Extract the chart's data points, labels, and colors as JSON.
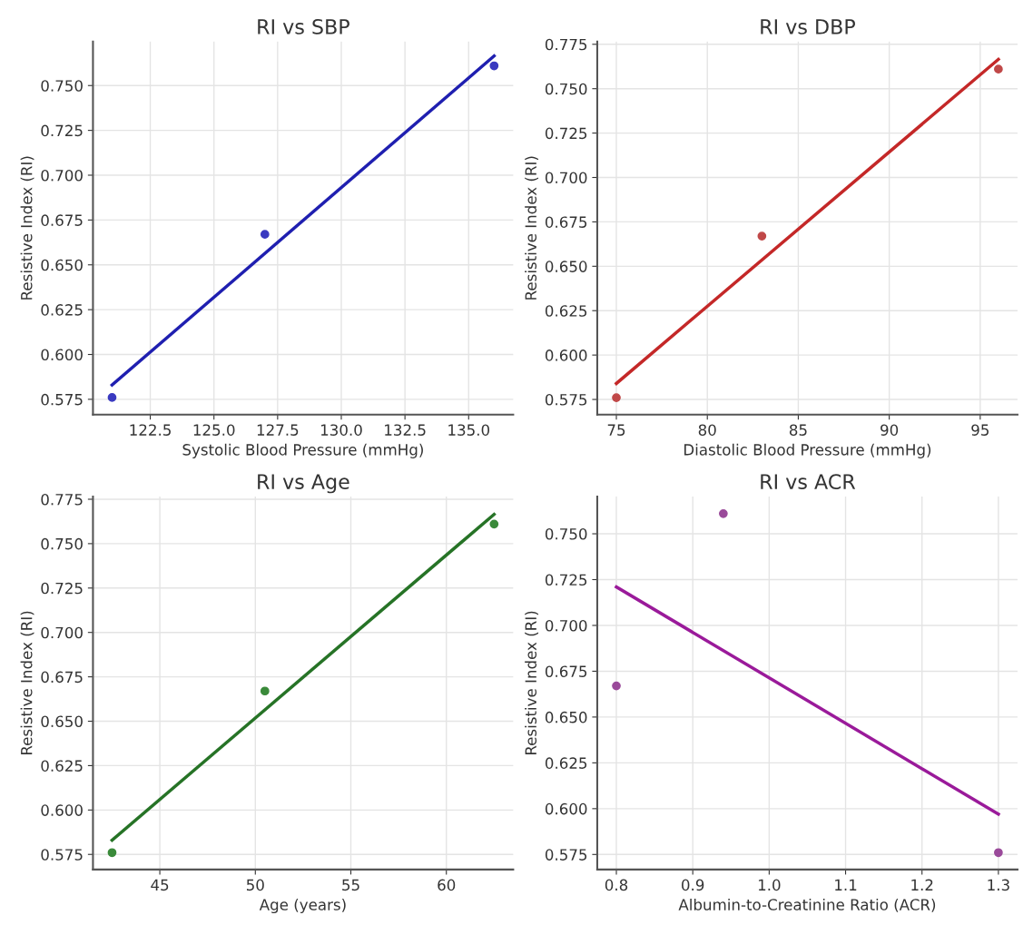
{
  "chart_data": [
    {
      "type": "scatter",
      "title": "RI vs SBP",
      "xlabel": "Systolic Blood Pressure (mmHg)",
      "ylabel": "Resistive Index (RI)",
      "grid": true,
      "xlim": [
        120.25,
        136.75
      ],
      "xticks": [
        122.5,
        {
          "value": 125,
          "label": "125.0"
        },
        127.5,
        {
          "value": 130,
          "label": "130.0"
        },
        132.5,
        {
          "value": 135,
          "label": "135.0"
        }
      ],
      "ylim": [
        0.5665,
        0.7745
      ],
      "yticks": [
        0.575,
        {
          "value": 0.6,
          "label": "0.600"
        },
        0.625,
        {
          "value": 0.65,
          "label": "0.650"
        },
        0.675,
        {
          "value": 0.7,
          "label": "0.700"
        },
        0.725,
        {
          "value": 0.75,
          "label": "0.750"
        }
      ],
      "series": [
        {
          "marker": "circle",
          "color": "#3a3ac0",
          "x": [
            121,
            127,
            136
          ],
          "values": [
            0.576,
            0.667,
            0.761
          ]
        },
        {
          "type": "line",
          "marker": "none",
          "color": "#1f1fb0",
          "x": [
            121,
            136
          ],
          "values": [
            0.583,
            0.7665
          ]
        }
      ]
    },
    {
      "type": "scatter",
      "title": "RI vs DBP",
      "xlabel": "Diastolic Blood Pressure (mmHg)",
      "ylabel": "Resistive Index (RI)",
      "grid": true,
      "xlim": [
        73.95,
        97.05
      ],
      "xticks": [
        75,
        80,
        85,
        90,
        95
      ],
      "ylim": [
        0.5665,
        0.7765
      ],
      "yticks": [
        0.575,
        {
          "value": 0.6,
          "label": "0.600"
        },
        0.625,
        {
          "value": 0.65,
          "label": "0.650"
        },
        0.675,
        {
          "value": 0.7,
          "label": "0.700"
        },
        0.725,
        {
          "value": 0.75,
          "label": "0.750"
        },
        0.775
      ],
      "series": [
        {
          "marker": "circle",
          "color": "#c04848",
          "x": [
            75,
            83,
            96
          ],
          "values": [
            0.576,
            0.667,
            0.761
          ]
        },
        {
          "type": "line",
          "marker": "none",
          "color": "#c42828",
          "x": [
            75,
            96
          ],
          "values": [
            0.584,
            0.7665
          ]
        }
      ]
    },
    {
      "type": "scatter",
      "title": "RI vs Age",
      "xlabel": "Age (years)",
      "ylabel": "Resistive Index (RI)",
      "grid": true,
      "xlim": [
        41.5,
        63.5
      ],
      "xticks": [
        45,
        50,
        55,
        60
      ],
      "ylim": [
        0.5665,
        0.7765
      ],
      "yticks": [
        0.575,
        {
          "value": 0.6,
          "label": "0.600"
        },
        0.625,
        {
          "value": 0.65,
          "label": "0.650"
        },
        0.675,
        {
          "value": 0.7,
          "label": "0.700"
        },
        0.725,
        {
          "value": 0.75,
          "label": "0.750"
        },
        0.775
      ],
      "series": [
        {
          "marker": "circle",
          "color": "#3a8a3a",
          "x": [
            42.5,
            50.5,
            62.5
          ],
          "values": [
            0.576,
            0.667,
            0.761
          ]
        },
        {
          "type": "line",
          "marker": "none",
          "color": "#267326",
          "x": [
            42.5,
            62.5
          ],
          "values": [
            0.583,
            0.7665
          ]
        }
      ]
    },
    {
      "type": "scatter",
      "title": "RI vs ACR",
      "xlabel": "Albumin-to-Creatinine Ratio (ACR)",
      "ylabel": "Resistive Index (RI)",
      "grid": true,
      "xlim": [
        0.775,
        1.325
      ],
      "xticks": [
        0.8,
        0.9,
        {
          "value": 1,
          "label": "1.0"
        },
        1.1,
        1.2,
        1.3
      ],
      "ylim": [
        0.5668,
        0.7703
      ],
      "yticks": [
        0.575,
        {
          "value": 0.6,
          "label": "0.600"
        },
        0.625,
        {
          "value": 0.65,
          "label": "0.650"
        },
        0.675,
        {
          "value": 0.7,
          "label": "0.700"
        },
        0.725,
        {
          "value": 0.75,
          "label": "0.750"
        }
      ],
      "series": [
        {
          "marker": "circle",
          "color": "#9a4a9a",
          "x": [
            0.8,
            0.94,
            1.3
          ],
          "values": [
            0.667,
            0.761,
            0.576
          ]
        },
        {
          "type": "line",
          "marker": "none",
          "color": "#9a1a9a",
          "x": [
            0.8,
            1.3
          ],
          "values": [
            0.721,
            0.597
          ]
        }
      ]
    }
  ]
}
